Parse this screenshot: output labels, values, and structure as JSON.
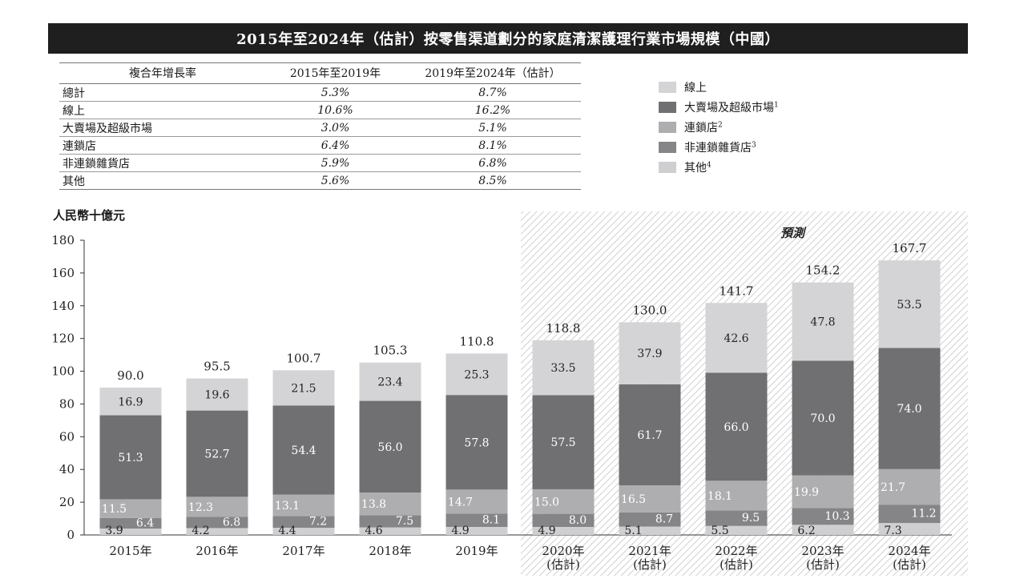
{
  "title": "2015年至2024年（估計）按零售渠道劃分的家庭清潔護理行業市場規模（中國）",
  "cagr_table": {
    "headers": [
      "複合年增長率",
      "2015年至2019年",
      "2019年至2024年（估計）"
    ],
    "rows": [
      {
        "label": "總計",
        "v1": "5.3%",
        "v2": "8.7%"
      },
      {
        "label": "線上",
        "v1": "10.6%",
        "v2": "16.2%"
      },
      {
        "label": "大賣場及超級市場",
        "v1": "3.0%",
        "v2": "5.1%"
      },
      {
        "label": "連鎖店",
        "v1": "6.4%",
        "v2": "8.1%"
      },
      {
        "label": "非連鎖雜貨店",
        "v1": "5.9%",
        "v2": "6.8%"
      },
      {
        "label": "其他",
        "v1": "5.6%",
        "v2": "8.5%"
      }
    ]
  },
  "legend": [
    {
      "label": "線上",
      "sup": "",
      "color": "#d4d4d6"
    },
    {
      "label": "大賣場及超級市場",
      "sup": "1",
      "color": "#707073"
    },
    {
      "label": "連鎖店",
      "sup": "2",
      "color": "#aeaeb0"
    },
    {
      "label": "非連鎖雜貨店",
      "sup": "3",
      "color": "#858588"
    },
    {
      "label": "其他",
      "sup": "4",
      "color": "#cfcfd1"
    }
  ],
  "unit_label": "人民幣十億元",
  "forecast_label": "預測",
  "chart_data": {
    "type": "bar",
    "stacked": true,
    "categories": [
      "2015年",
      "2016年",
      "2017年",
      "2018年",
      "2019年",
      "2020年\n(估計)",
      "2021年\n(估計)",
      "2022年\n(估計)",
      "2023年\n(估計)",
      "2024年\n(估計)"
    ],
    "series": [
      {
        "name": "其他",
        "color": "#cfcfd1",
        "values": [
          3.9,
          4.2,
          4.4,
          4.6,
          4.9,
          4.9,
          5.1,
          5.5,
          6.2,
          7.3
        ]
      },
      {
        "name": "非連鎖雜貨店",
        "color": "#858588",
        "values": [
          6.4,
          6.8,
          7.2,
          7.5,
          8.1,
          8.0,
          8.7,
          9.5,
          10.3,
          11.2
        ]
      },
      {
        "name": "連鎖店",
        "color": "#aeaeb0",
        "values": [
          11.5,
          12.3,
          13.1,
          13.8,
          14.7,
          15.0,
          16.5,
          18.1,
          19.9,
          21.7
        ]
      },
      {
        "name": "大賣場及超級市場",
        "color": "#707073",
        "values": [
          51.3,
          52.7,
          54.4,
          56.0,
          57.8,
          57.5,
          61.7,
          66.0,
          70.0,
          74.0
        ]
      },
      {
        "name": "線上",
        "color": "#d4d4d6",
        "values": [
          16.9,
          19.6,
          21.5,
          23.4,
          25.3,
          33.5,
          37.9,
          42.6,
          47.8,
          53.5
        ]
      }
    ],
    "totals": [
      "90.0",
      "95.5",
      "100.7",
      "105.3",
      "110.8",
      "118.8",
      "130.0",
      "141.7",
      "154.2",
      "167.7"
    ],
    "forecast_from_index": 5,
    "ylim": [
      0,
      180
    ],
    "yticks": [
      0,
      20,
      40,
      60,
      80,
      100,
      120,
      140,
      160,
      180
    ],
    "grid": false
  }
}
